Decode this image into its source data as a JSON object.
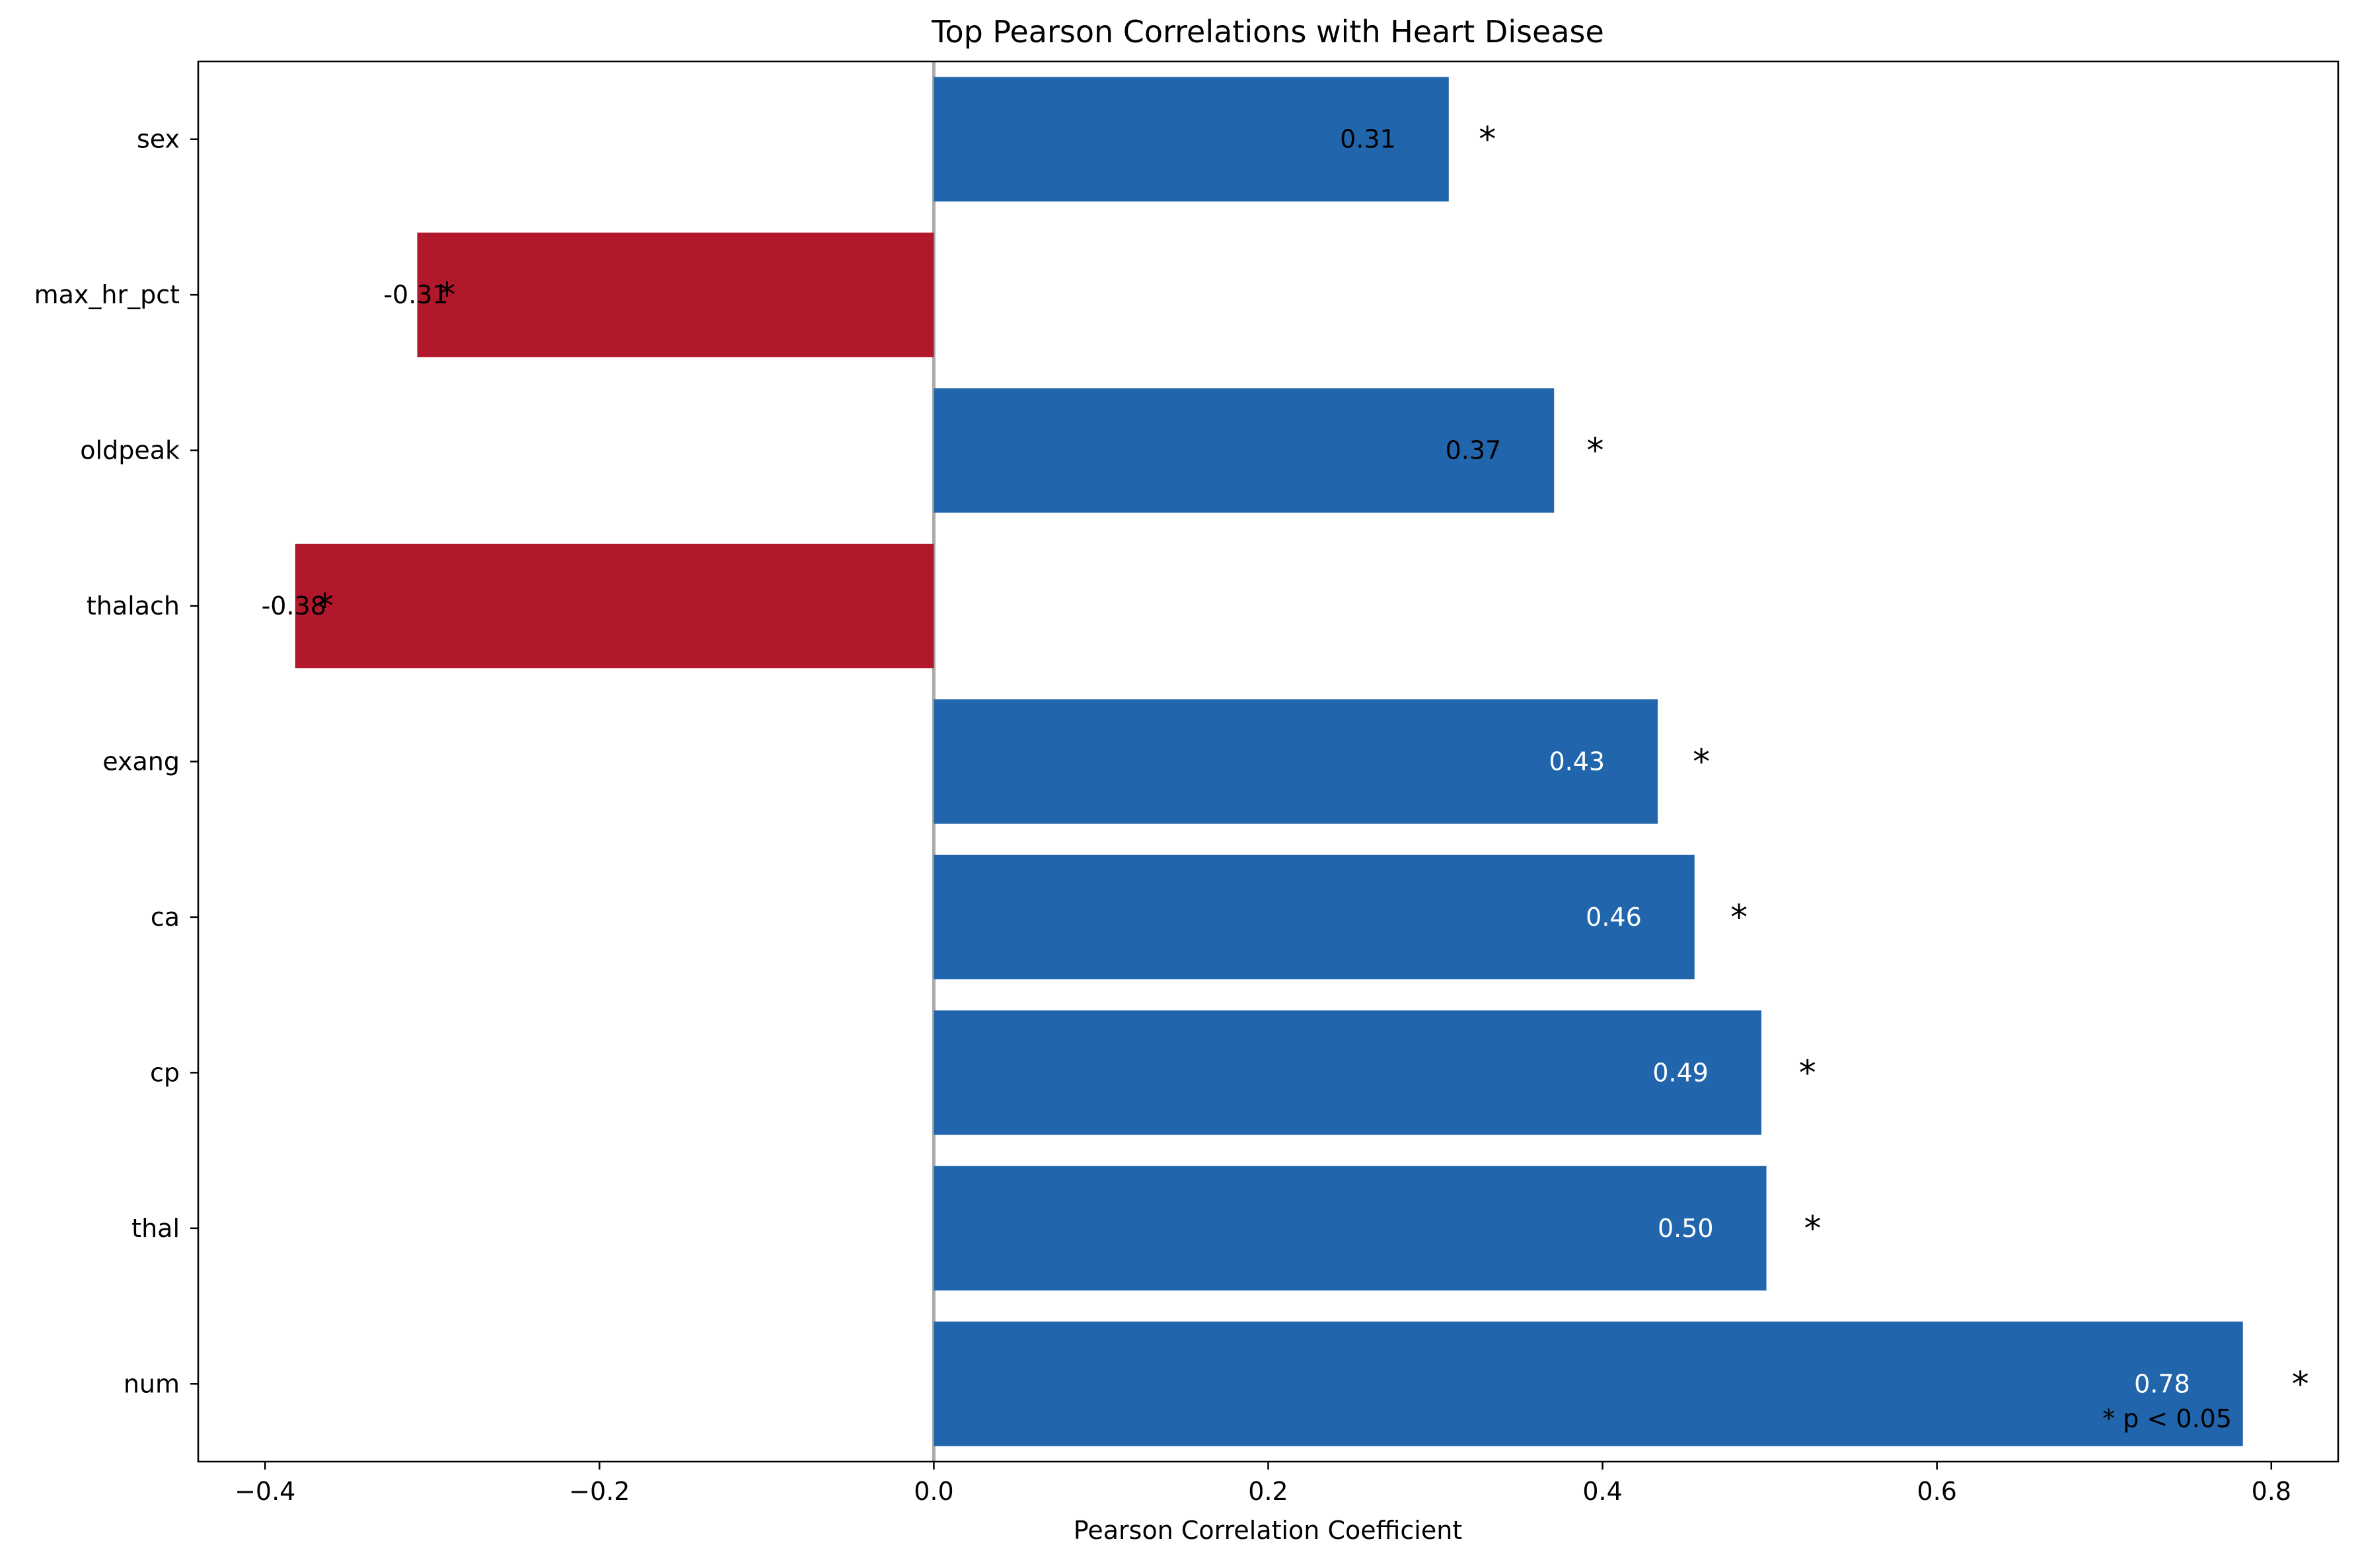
{
  "chart_data": {
    "type": "bar",
    "orientation": "horizontal",
    "title": "Top Pearson Correlations with Heart Disease",
    "xlabel": "Pearson Correlation Coefficient",
    "ylabel": "",
    "xlim": [
      -0.44,
      0.84
    ],
    "xticks": [
      -0.4,
      -0.2,
      0.0,
      0.2,
      0.4,
      0.6,
      0.8
    ],
    "xtick_labels": [
      "−0.4",
      "−0.2",
      "0.0",
      "0.2",
      "0.4",
      "0.6",
      "0.8"
    ],
    "categories": [
      "sex",
      "max_hr_pct",
      "oldpeak",
      "thalach",
      "exang",
      "ca",
      "cp",
      "thal",
      "num"
    ],
    "values": [
      0.308,
      -0.309,
      0.371,
      -0.382,
      0.433,
      0.455,
      0.495,
      0.498,
      0.783
    ],
    "value_labels": [
      "0.31",
      "-0.31",
      "0.37",
      "-0.38",
      "0.43",
      "0.46",
      "0.49",
      "0.50",
      "0.78"
    ],
    "significant": [
      true,
      true,
      true,
      true,
      true,
      true,
      true,
      true,
      true
    ],
    "significance_marker": "*",
    "footnote": "* p < 0.05",
    "positive_color": "#2166ac",
    "negative_color": "#b2182b",
    "zero_line_color": "#aaaaaa",
    "grid": false
  }
}
